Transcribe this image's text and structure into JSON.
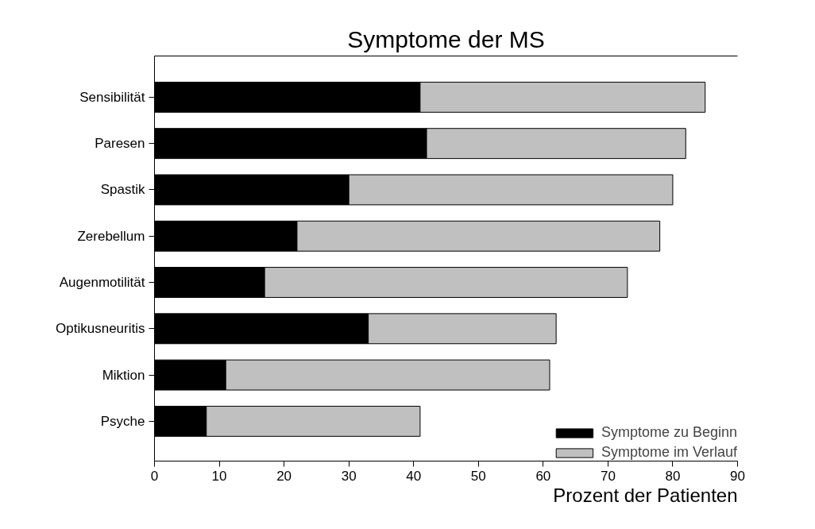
{
  "chart_data": {
    "type": "bar",
    "orientation": "horizontal",
    "stacked": true,
    "title": "Symptome der MS",
    "xlabel": "Prozent der Patienten",
    "categories": [
      "Sensibilität",
      "Paresen",
      "Spastik",
      "Zerebellum",
      "Augenmotilität",
      "Optikusneuritis",
      "Miktion",
      "Psyche"
    ],
    "series": [
      {
        "name": "Symptome zu Beginn",
        "color": "#000000",
        "values": [
          41,
          42,
          30,
          22,
          17,
          33,
          11,
          8
        ]
      },
      {
        "name": "Symptome im Verlauf",
        "color": "#c0c0c0",
        "values": [
          44,
          40,
          50,
          56,
          56,
          29,
          50,
          33
        ]
      }
    ],
    "xlim": [
      0,
      90
    ],
    "xticks": [
      0,
      10,
      20,
      30,
      40,
      50,
      60,
      70,
      80,
      90
    ],
    "grid": false,
    "legend": "bottom right"
  }
}
